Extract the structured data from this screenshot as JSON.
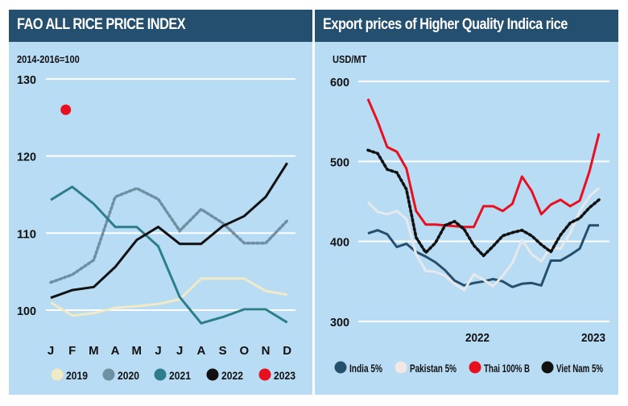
{
  "chart_data": [
    {
      "type": "line",
      "title": "FAO ALL RICE PRICE INDEX",
      "ylabel": "2014-2016=100",
      "xlabel": "",
      "ylim": [
        97,
        130
      ],
      "yticks": [
        100,
        110,
        120,
        130
      ],
      "grid": true,
      "categories": [
        "J",
        "F",
        "M",
        "A",
        "M",
        "J",
        "J",
        "A",
        "S",
        "O",
        "N",
        "D"
      ],
      "legend_position": "bottom",
      "series": [
        {
          "name": "2019",
          "color": "#f2e9c6",
          "style": "solid",
          "values": [
            101.0,
            99.3,
            99.6,
            100.3,
            100.5,
            100.8,
            101.4,
            104.1,
            104.1,
            104.1,
            102.5,
            102.0
          ]
        },
        {
          "name": "2020",
          "color": "#6f8fa3",
          "style": "dotted",
          "values": [
            103.6,
            104.6,
            106.5,
            114.7,
            115.8,
            114.4,
            110.3,
            113.1,
            111.3,
            108.7,
            108.7,
            111.6
          ]
        },
        {
          "name": "2021",
          "color": "#2c7e8c",
          "style": "solid",
          "values": [
            114.3,
            116.0,
            113.8,
            110.8,
            110.8,
            108.3,
            101.7,
            98.3,
            99.1,
            100.1,
            100.1,
            98.4
          ]
        },
        {
          "name": "2022",
          "color": "#111111",
          "style": "solid",
          "values": [
            101.6,
            102.6,
            103.0,
            105.6,
            109.1,
            110.8,
            108.6,
            108.6,
            110.9,
            112.2,
            114.7,
            119.1
          ]
        },
        {
          "name": "2023",
          "color": "#e8101f",
          "style": "dot",
          "values": [
            126.0
          ]
        }
      ]
    },
    {
      "type": "line",
      "title": "Export prices of Higher Quality Indica rice",
      "ylabel": "USD/MT",
      "xlabel": "",
      "ylim": [
        290,
        600
      ],
      "yticks": [
        300,
        400,
        500,
        600
      ],
      "grid": true,
      "x_tick_labels": [
        {
          "label": "2022",
          "index": 12
        },
        {
          "label": "2023",
          "index": 24
        }
      ],
      "points_per_series": 25,
      "legend_position": "bottom",
      "series": [
        {
          "name": "India 5%",
          "color": "#24506e",
          "style": "solid",
          "values": [
            410,
            414,
            409,
            393,
            397,
            387,
            381,
            374,
            364,
            351,
            345,
            348,
            350,
            353,
            350,
            343,
            347,
            348,
            345,
            376,
            376,
            383,
            391,
            420,
            420
          ]
        },
        {
          "name": "Pakistan 5%",
          "color": "#e6e8ec",
          "style": "solid",
          "values": [
            449,
            437,
            434,
            438,
            428,
            384,
            363,
            362,
            357,
            347,
            339,
            359,
            352,
            344,
            357,
            373,
            402,
            384,
            375,
            393,
            391,
            410,
            438,
            456,
            467
          ]
        },
        {
          "name": "Thai 100% B",
          "color": "#e8101f",
          "style": "solid",
          "values": [
            578,
            550,
            518,
            512,
            491,
            438,
            421,
            421,
            420,
            419,
            418,
            418,
            444,
            444,
            438,
            447,
            481,
            463,
            434,
            446,
            452,
            444,
            451,
            487,
            535
          ]
        },
        {
          "name": "Viet Nam 5%",
          "color": "#111111",
          "style": "dotted",
          "values": [
            514,
            510,
            490,
            486,
            465,
            405,
            386,
            398,
            420,
            425,
            415,
            395,
            382,
            394,
            407,
            411,
            414,
            407,
            396,
            387,
            408,
            423,
            429,
            442,
            452
          ]
        }
      ]
    }
  ]
}
